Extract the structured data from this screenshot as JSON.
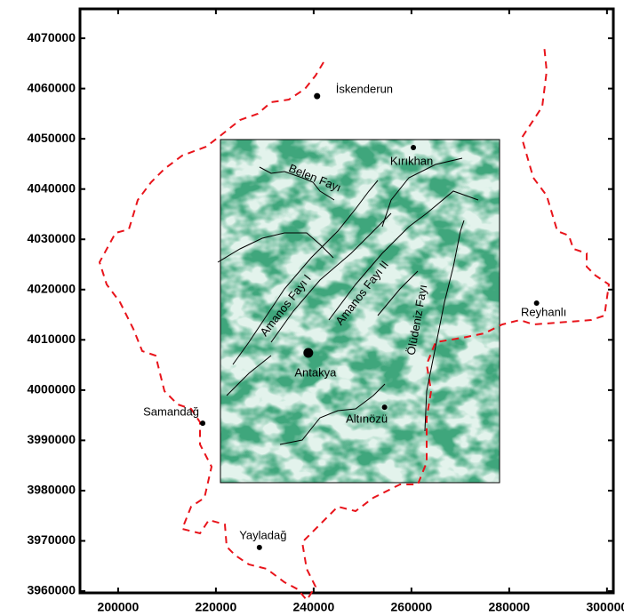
{
  "map": {
    "xlim": [
      192200,
      301300
    ],
    "ylim": [
      3959650,
      4075850
    ],
    "xticks": [
      200000,
      220000,
      240000,
      260000,
      280000,
      300000
    ],
    "yticks": [
      3960000,
      3970000,
      3980000,
      3990000,
      4000000,
      4010000,
      4020000,
      4030000,
      4040000,
      4050000,
      4060000,
      4070000
    ],
    "places": [
      {
        "label": "İskenderun",
        "x": 240700,
        "y": 4058500
      },
      {
        "label": "Kırıkhan",
        "x": 260400,
        "y": 4048250
      },
      {
        "label": "Reyhanlı",
        "x": 285600,
        "y": 4017300
      },
      {
        "label": "Antakya",
        "x": 238900,
        "y": 4007400
      },
      {
        "label": "Altınözü",
        "x": 254500,
        "y": 3996600
      },
      {
        "label": "Samandağ",
        "x": 217300,
        "y": 3993400
      },
      {
        "label": "Yayladağ",
        "x": 228900,
        "y": 3968700
      }
    ],
    "faults": [
      "Belen Fayı",
      "Amanos Fayı I",
      "Amanos Fayı II",
      "Ölüdeniz Fayı"
    ]
  }
}
